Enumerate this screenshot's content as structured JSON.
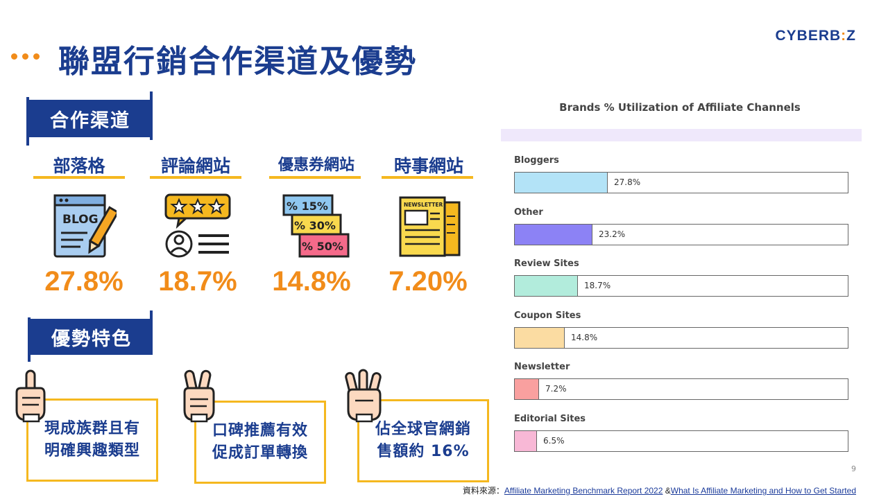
{
  "header": {
    "title": "聯盟行銷合作渠道及優勢",
    "logo_main": "CYBERB",
    "logo_accent": ":",
    "logo_tail": "Z"
  },
  "sections": {
    "channels_label": "合作渠道",
    "advantages_label": "優勢特色"
  },
  "channels": [
    {
      "label": "部落格",
      "pct": "27.8%",
      "icon": "blog-icon"
    },
    {
      "label": "評論網站",
      "pct": "18.7%",
      "icon": "review-icon"
    },
    {
      "label": "優惠券網站",
      "pct": "14.8%",
      "icon": "coupon-icon"
    },
    {
      "label": "時事網站",
      "pct": "7.20%",
      "icon": "newspaper-icon"
    }
  ],
  "coupon_icon_text": [
    "% 15%",
    "% 30%",
    "% 50%"
  ],
  "blog_icon_text": "BLOG",
  "newspaper_icon_text": "NEWSLETTER",
  "advantages": [
    {
      "line1": "現成族群且有",
      "line2": "明確興趣類型",
      "icon": "hand-one-icon"
    },
    {
      "line1": "口碑推薦有效",
      "line2": "促成訂單轉換",
      "icon": "hand-two-icon"
    },
    {
      "line1": "佔全球官網銷",
      "line2": "售額約 16%",
      "icon": "hand-three-icon"
    }
  ],
  "chart_data": {
    "type": "bar",
    "title": "Brands % Utilization of Affiliate Channels",
    "categories": [
      "Bloggers",
      "Other",
      "Review Sites",
      "Coupon Sites",
      "Newsletter",
      "Editorial Sites"
    ],
    "values": [
      27.8,
      23.2,
      18.7,
      14.8,
      7.2,
      6.5
    ],
    "value_labels": [
      "27.8%",
      "23.2%",
      "18.7%",
      "14.8%",
      "7.2%",
      "6.5%"
    ],
    "colors": [
      "#b3e3f7",
      "#8c82f5",
      "#b2ecdc",
      "#fbdca2",
      "#f9a09f",
      "#f8b8d6"
    ],
    "xlim": [
      0,
      100
    ],
    "orientation": "horizontal",
    "grid": false,
    "legend": "none"
  },
  "footer": {
    "page_number": "9",
    "source_prefix": "資料來源：",
    "source_link1": "Affiliate  Marketing Benchmark Report 2022",
    "source_sep": " &",
    "source_link2": "What Is Affiliate Marketing and How to Get Started"
  }
}
